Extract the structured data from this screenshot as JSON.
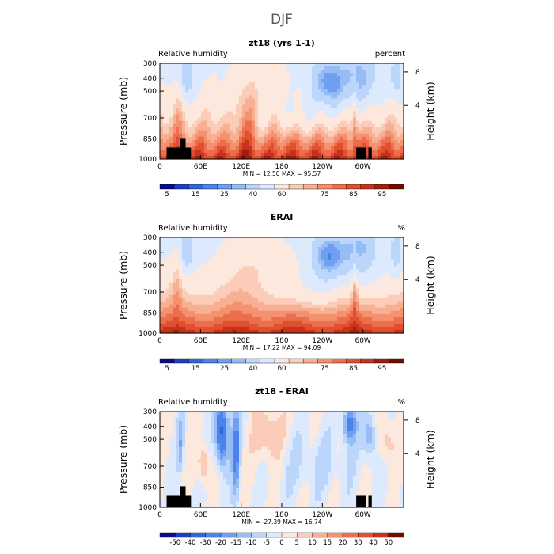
{
  "figure_title": "DJF",
  "chart_data": [
    {
      "type": "heatmap",
      "title": "zt18 (yrs 1-1)",
      "left_label": "Relative humidity",
      "right_label": "percent",
      "xlabel": "",
      "ylabel": "Pressure (mb)",
      "right_axis_label": "Height (km)",
      "x_ticks": [
        "0",
        "60E",
        "120E",
        "180",
        "120W",
        "60W"
      ],
      "y_ticks": [
        "300",
        "400",
        "500",
        "700",
        "850",
        "1000"
      ],
      "right_ticks": [
        "8",
        "4"
      ],
      "xlim": [
        0,
        360
      ],
      "ylim": [
        1000,
        300
      ],
      "stats": "MIN =   12.50   MAX =   95.57",
      "colorbar_labels": [
        "5",
        "15",
        "25",
        "40",
        "60",
        "75",
        "85",
        "95"
      ]
    },
    {
      "type": "heatmap",
      "title": "ERAI",
      "left_label": "Relative humidity",
      "right_label": "%",
      "xlabel": "",
      "ylabel": "Pressure (mb)",
      "right_axis_label": "Height (km)",
      "x_ticks": [
        "0",
        "60E",
        "120E",
        "180",
        "120W",
        "60W"
      ],
      "y_ticks": [
        "300",
        "400",
        "500",
        "700",
        "850",
        "1000"
      ],
      "right_ticks": [
        "8",
        "4"
      ],
      "xlim": [
        0,
        360
      ],
      "ylim": [
        1000,
        300
      ],
      "stats": "MIN =   17.22   MAX =   94.09",
      "colorbar_labels": [
        "5",
        "15",
        "25",
        "40",
        "60",
        "75",
        "85",
        "95"
      ]
    },
    {
      "type": "heatmap",
      "title": "zt18 - ERAI",
      "left_label": "Relative humidity",
      "right_label": "%",
      "xlabel": "",
      "ylabel": "Pressure (mb)",
      "right_axis_label": "Height (km)",
      "x_ticks": [
        "0",
        "60E",
        "120E",
        "180",
        "120W",
        "60W"
      ],
      "y_ticks": [
        "300",
        "400",
        "500",
        "700",
        "850",
        "1000"
      ],
      "right_ticks": [
        "8",
        "4"
      ],
      "xlim": [
        0,
        360
      ],
      "ylim": [
        1000,
        300
      ],
      "stats": "MIN =  -27.39   MAX =   16.74",
      "colorbar_labels": [
        "-50",
        "-40",
        "-30",
        "-20",
        "-15",
        "-10",
        "-5",
        "0",
        "5",
        "10",
        "15",
        "20",
        "30",
        "40",
        "50"
      ]
    }
  ],
  "palette": {
    "rh": [
      "#0a0a8c",
      "#1e3cc8",
      "#3264dc",
      "#4b82eb",
      "#6e9ff0",
      "#96bcf5",
      "#bcd5fa",
      "#dde9fc",
      "#fde8de",
      "#fbcdb8",
      "#f8b092",
      "#f4916e",
      "#ec6e4c",
      "#e05030",
      "#c8321a",
      "#a01e0c",
      "#6e0c04"
    ],
    "diff": [
      "#0a0a8c",
      "#1e3cc8",
      "#3264dc",
      "#4b82eb",
      "#6e9ff0",
      "#96bcf5",
      "#bcd5fa",
      "#dde9fc",
      "#fde8de",
      "#fbcdb8",
      "#f8b092",
      "#f4916e",
      "#ec6e4c",
      "#e05030",
      "#c8321a",
      "#6e0c04"
    ]
  }
}
